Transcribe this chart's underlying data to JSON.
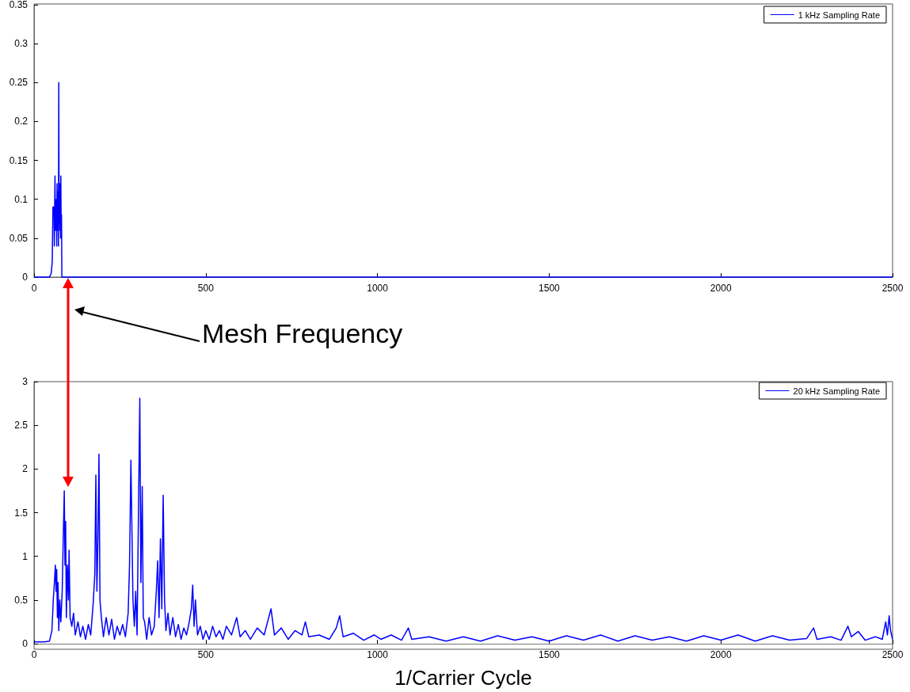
{
  "chart_data": [
    {
      "type": "line",
      "xlim": [
        0,
        2500
      ],
      "xticks": [
        0,
        500,
        1000,
        1500,
        2000,
        2500
      ],
      "ylim": [
        0,
        0.35
      ],
      "yticks": [
        0,
        0.05,
        0.1,
        0.15,
        0.2,
        0.25,
        0.3,
        0.35
      ],
      "grid": false,
      "legend": "top right",
      "marker": "none",
      "line_style": "solid",
      "annotations": [
        "Mesh Frequency"
      ],
      "series": [
        {
          "name": "1 kHz Sampling Rate",
          "color": "#0000ff",
          "x": [
            0,
            45,
            50,
            53,
            55,
            58,
            59,
            60,
            61,
            62,
            64,
            65,
            66,
            67,
            68,
            70,
            71,
            72,
            73,
            74,
            75,
            76,
            77,
            78,
            79,
            80,
            81,
            2500
          ],
          "values": [
            0,
            0,
            0.005,
            0.02,
            0.09,
            0.09,
            0.04,
            0.09,
            0.13,
            0.06,
            0.09,
            0.1,
            0.04,
            0.12,
            0.06,
            0.11,
            0.04,
            0.25,
            0.07,
            0.11,
            0.06,
            0.12,
            0.05,
            0.13,
            0.06,
            0.08,
            0,
            0
          ]
        }
      ]
    },
    {
      "type": "line",
      "xlabel": "1/Carrier Cycle",
      "xlim": [
        0,
        2500
      ],
      "xticks": [
        0,
        500,
        1000,
        1500,
        2000,
        2500
      ],
      "ylim": [
        0,
        3
      ],
      "yticks": [
        0,
        0.5,
        1,
        1.5,
        2,
        2.5,
        3
      ],
      "grid": false,
      "legend": "top right",
      "marker": "none",
      "line_style": "solid",
      "series": [
        {
          "name": "20 kHz Sampling Rate",
          "color": "#0000ff",
          "x": [
            0,
            30,
            45,
            52,
            56,
            60,
            62,
            64,
            66,
            68,
            70,
            72,
            75,
            78,
            82,
            85,
            88,
            90,
            92,
            94,
            97,
            100,
            102,
            105,
            110,
            115,
            120,
            128,
            135,
            142,
            150,
            158,
            165,
            172,
            177,
            180,
            183,
            186,
            189,
            192,
            196,
            202,
            210,
            218,
            226,
            234,
            242,
            250,
            258,
            266,
            274,
            278,
            282,
            285,
            288,
            292,
            296,
            300,
            304,
            308,
            311,
            315,
            318,
            322,
            328,
            335,
            342,
            350,
            356,
            360,
            364,
            368,
            372,
            376,
            380,
            384,
            390,
            396,
            404,
            412,
            420,
            428,
            436,
            444,
            452,
            458,
            462,
            466,
            470,
            476,
            484,
            492,
            500,
            510,
            520,
            530,
            540,
            550,
            560,
            575,
            590,
            600,
            615,
            630,
            650,
            670,
            690,
            700,
            720,
            740,
            760,
            780,
            790,
            800,
            830,
            860,
            880,
            890,
            900,
            930,
            960,
            990,
            1010,
            1040,
            1070,
            1090,
            1100,
            1150,
            1200,
            1250,
            1300,
            1350,
            1400,
            1450,
            1500,
            1550,
            1600,
            1650,
            1700,
            1750,
            1800,
            1850,
            1900,
            1950,
            2000,
            2050,
            2100,
            2150,
            2200,
            2250,
            2270,
            2280,
            2320,
            2350,
            2370,
            2380,
            2400,
            2420,
            2450,
            2470,
            2480,
            2485,
            2490,
            2494,
            2500
          ],
          "values": [
            0.02,
            0.02,
            0.03,
            0.15,
            0.5,
            0.75,
            0.9,
            0.6,
            0.85,
            0.3,
            0.7,
            0.15,
            0.5,
            0.25,
            0.6,
            1.2,
            1.75,
            0.9,
            1.4,
            0.3,
            0.9,
            0.5,
            1.07,
            0.3,
            0.2,
            0.35,
            0.1,
            0.25,
            0.08,
            0.2,
            0.05,
            0.22,
            0.1,
            0.45,
            0.8,
            1.93,
            0.6,
            1.2,
            2.17,
            0.5,
            0.3,
            0.08,
            0.3,
            0.1,
            0.28,
            0.05,
            0.2,
            0.1,
            0.22,
            0.08,
            0.35,
            0.9,
            2.1,
            1.3,
            0.5,
            0.2,
            0.6,
            0.1,
            1.5,
            2.81,
            0.7,
            1.8,
            0.3,
            0.25,
            0.05,
            0.3,
            0.1,
            0.2,
            0.6,
            0.95,
            0.3,
            1.2,
            0.4,
            1.7,
            0.5,
            0.15,
            0.35,
            0.1,
            0.3,
            0.08,
            0.22,
            0.05,
            0.18,
            0.1,
            0.25,
            0.4,
            0.67,
            0.2,
            0.5,
            0.1,
            0.2,
            0.05,
            0.15,
            0.05,
            0.2,
            0.08,
            0.15,
            0.05,
            0.2,
            0.1,
            0.3,
            0.08,
            0.15,
            0.05,
            0.18,
            0.1,
            0.4,
            0.1,
            0.18,
            0.05,
            0.15,
            0.1,
            0.25,
            0.08,
            0.1,
            0.05,
            0.18,
            0.32,
            0.08,
            0.12,
            0.04,
            0.1,
            0.05,
            0.1,
            0.04,
            0.18,
            0.05,
            0.08,
            0.03,
            0.08,
            0.03,
            0.09,
            0.04,
            0.08,
            0.03,
            0.09,
            0.04,
            0.1,
            0.03,
            0.09,
            0.04,
            0.08,
            0.03,
            0.09,
            0.04,
            0.1,
            0.03,
            0.09,
            0.04,
            0.06,
            0.18,
            0.05,
            0.08,
            0.04,
            0.2,
            0.08,
            0.14,
            0.04,
            0.08,
            0.05,
            0.25,
            0.1,
            0.32,
            0.15,
            0.05
          ]
        }
      ]
    }
  ]
}
